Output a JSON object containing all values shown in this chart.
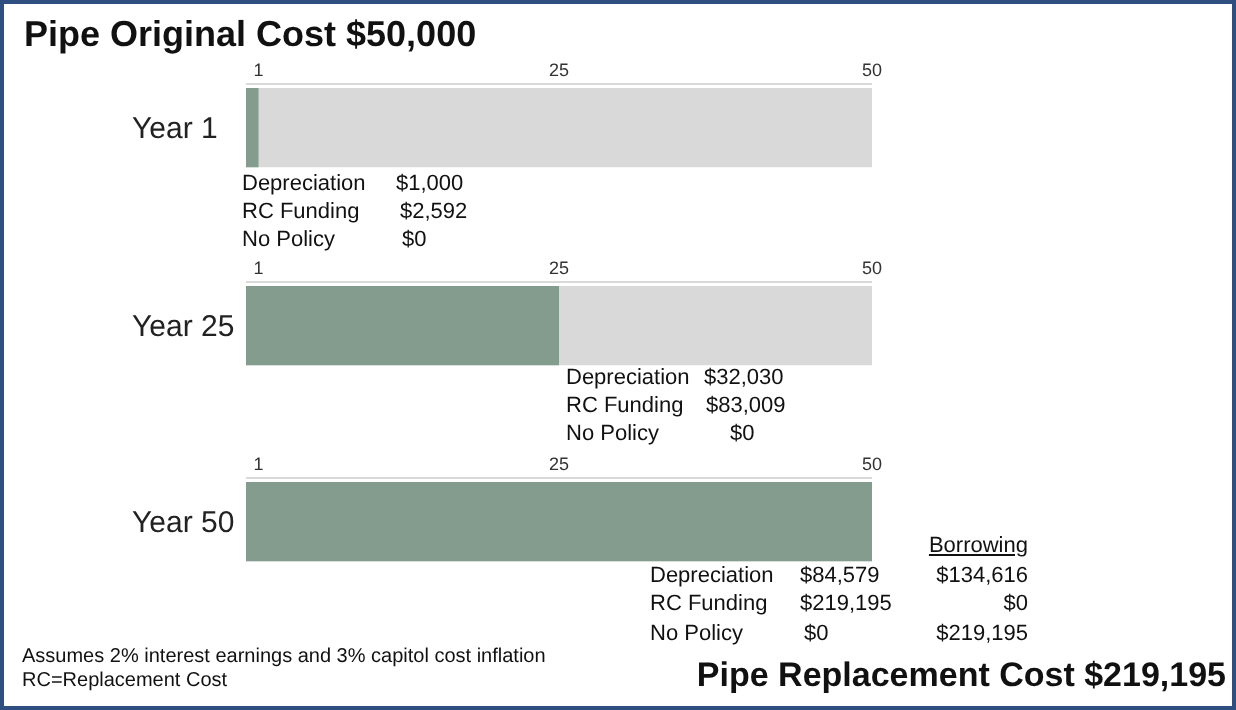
{
  "chart_data": [
    {
      "type": "bar",
      "orientation": "horizontal",
      "title": "Pipe Original Cost $50,000",
      "categories": [
        "Year 1"
      ],
      "values": [
        1
      ],
      "color": "#849c8e",
      "xlim": [
        0,
        50
      ],
      "xticks": [
        1,
        25,
        50
      ],
      "annotations": [
        "Depreciation",
        "$1,000",
        "RC Funding",
        "$2,592",
        "No Policy",
        "$0"
      ]
    },
    {
      "type": "bar",
      "orientation": "horizontal",
      "categories": [
        "Year 25"
      ],
      "values": [
        25
      ],
      "color": "#849c8e",
      "xlim": [
        0,
        50
      ],
      "xticks": [
        1,
        25,
        50
      ],
      "annotations": [
        "Depreciation",
        "$32,030",
        "RC Funding",
        "$83,009",
        "No Policy",
        "$0"
      ]
    },
    {
      "type": "bar",
      "orientation": "horizontal",
      "categories": [
        "Year 50"
      ],
      "values": [
        50
      ],
      "color": "#849c8e",
      "xlim": [
        0,
        50
      ],
      "xticks": [
        1,
        25,
        50
      ],
      "annotations": [
        "Borrowing",
        "Depreciation",
        "$84,579",
        "$134,616",
        "RC Funding",
        "$219,195",
        "$0",
        "No Policy",
        "$0",
        "$219,195",
        "Assumes 2% interest earnings and 3% capitol cost inflation",
        "RC=Replacement Cost",
        "Pipe Replacement Cost $219,195"
      ]
    }
  ]
}
